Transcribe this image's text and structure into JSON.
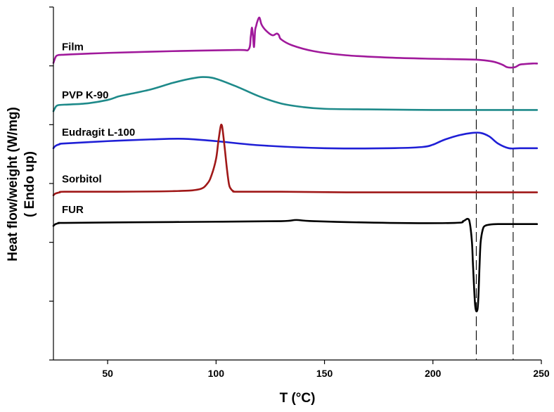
{
  "chart_data": {
    "type": "line",
    "title": "",
    "xlabel": "T (°C)",
    "ylabel": [
      "Heat flow/weight (W/mg)",
      "( Endo up)"
    ],
    "xlim": [
      25,
      250
    ],
    "xticks": [
      50,
      100,
      150,
      200,
      250
    ],
    "ylim": [
      0,
      6
    ],
    "yticks": [
      0,
      1,
      2,
      3,
      4,
      5,
      6
    ],
    "y_tick_labels_shown": false,
    "grid": false,
    "legend": "none",
    "vlines": [
      220,
      237
    ],
    "series": [
      {
        "name": "Film",
        "color": "#a0199b",
        "x": [
          25,
          26,
          27,
          30,
          50,
          80,
          110,
          115,
          116,
          116.5,
          117,
          117.5,
          118,
          118.5,
          119,
          120,
          121,
          123,
          126,
          128,
          129,
          130,
          135,
          145,
          160,
          180,
          200,
          215,
          222,
          228,
          232,
          234,
          236,
          238,
          240,
          242,
          246,
          248
        ],
        "y": [
          5.05,
          5.15,
          5.18,
          5.19,
          5.22,
          5.25,
          5.27,
          5.28,
          5.5,
          5.65,
          5.52,
          5.32,
          5.6,
          5.68,
          5.75,
          5.82,
          5.7,
          5.6,
          5.52,
          5.55,
          5.52,
          5.45,
          5.35,
          5.25,
          5.18,
          5.14,
          5.12,
          5.11,
          5.1,
          5.07,
          5.02,
          4.98,
          4.97,
          4.98,
          5.02,
          5.03,
          5.04,
          5.04
        ]
      },
      {
        "name": "PVP K-90",
        "color": "#1e8a8a",
        "x": [
          25,
          26,
          27,
          30,
          40,
          50,
          55,
          60,
          70,
          80,
          88,
          94,
          100,
          110,
          120,
          130,
          140,
          150,
          170,
          200,
          230,
          248
        ],
        "y": [
          4.23,
          4.3,
          4.33,
          4.34,
          4.36,
          4.42,
          4.48,
          4.52,
          4.6,
          4.71,
          4.78,
          4.81,
          4.78,
          4.64,
          4.48,
          4.36,
          4.3,
          4.27,
          4.26,
          4.25,
          4.25,
          4.25
        ]
      },
      {
        "name": "Eudragit L-100",
        "color": "#1f1fd6",
        "x": [
          25,
          26,
          28,
          30,
          50,
          70,
          85,
          100,
          120,
          150,
          180,
          195,
          200,
          205,
          212,
          218,
          222,
          226,
          230,
          235,
          240,
          248
        ],
        "y": [
          3.6,
          3.64,
          3.67,
          3.68,
          3.72,
          3.75,
          3.76,
          3.72,
          3.65,
          3.6,
          3.6,
          3.62,
          3.66,
          3.74,
          3.82,
          3.86,
          3.86,
          3.8,
          3.68,
          3.6,
          3.6,
          3.6
        ]
      },
      {
        "name": "Sorbitol",
        "color": "#a01818",
        "x": [
          25,
          26,
          28,
          30,
          50,
          80,
          92,
          96,
          98,
          100,
          101,
          102,
          102.5,
          103,
          104,
          105,
          106,
          107,
          108,
          110,
          130,
          160,
          200,
          248
        ],
        "y": [
          2.8,
          2.83,
          2.85,
          2.86,
          2.86,
          2.87,
          2.9,
          3.0,
          3.15,
          3.42,
          3.7,
          3.95,
          4.0,
          3.92,
          3.6,
          3.25,
          2.98,
          2.9,
          2.87,
          2.86,
          2.86,
          2.85,
          2.85,
          2.85
        ]
      },
      {
        "name": "FUR",
        "color": "#000000",
        "x": [
          25,
          26,
          28,
          30,
          60,
          100,
          130,
          137,
          145,
          180,
          210,
          214,
          216,
          217,
          218,
          218.5,
          219.5,
          220.5,
          221,
          221.5,
          222,
          223,
          224,
          226,
          230,
          240,
          248
        ],
        "y": [
          2.28,
          2.31,
          2.33,
          2.33,
          2.34,
          2.35,
          2.36,
          2.38,
          2.36,
          2.33,
          2.33,
          2.36,
          2.4,
          2.33,
          2.0,
          1.6,
          0.92,
          0.85,
          1.1,
          1.6,
          2.0,
          2.22,
          2.28,
          2.3,
          2.31,
          2.31,
          2.31
        ]
      }
    ]
  }
}
